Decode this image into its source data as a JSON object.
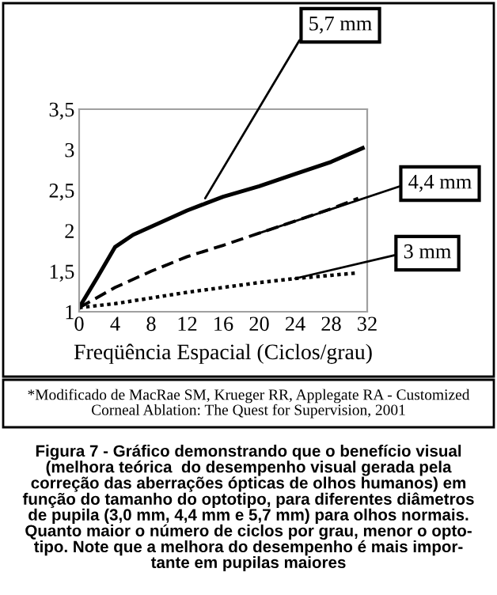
{
  "chart_data": {
    "type": "line",
    "xlabel": "Freqüência Espacial (Ciclos/grau)",
    "xlim": [
      0,
      32
    ],
    "xticks": [
      0,
      4,
      8,
      12,
      16,
      20,
      24,
      28,
      32
    ],
    "ylim": [
      1,
      3.5
    ],
    "yticks": [
      1,
      {
        "value": 1.5,
        "label": "1,5"
      },
      2,
      {
        "value": 2.5,
        "label": "2,5"
      },
      3,
      {
        "value": 3.5,
        "label": "3,5"
      }
    ],
    "grid": false,
    "legend": false,
    "marker": "none",
    "series": [
      {
        "color": "#000000",
        "line_style": "solid",
        "x": [
          0,
          2,
          4,
          6,
          8,
          12,
          16,
          20,
          24,
          28,
          31.5
        ],
        "values": [
          1.05,
          1.42,
          1.8,
          1.95,
          2.05,
          2.25,
          2.42,
          2.55,
          2.7,
          2.85,
          3.02
        ]
      },
      {
        "color": "#000000",
        "line_style": "dashed",
        "x": [
          0,
          4,
          8,
          12,
          16,
          20,
          24,
          28,
          31
        ],
        "values": [
          1.05,
          1.3,
          1.5,
          1.68,
          1.82,
          1.97,
          2.12,
          2.27,
          2.4
        ]
      },
      {
        "color": "#000000",
        "line_style": "dotted",
        "x": [
          0,
          4,
          8,
          12,
          16,
          20,
          24,
          28,
          31
        ],
        "values": [
          1.05,
          1.1,
          1.17,
          1.24,
          1.3,
          1.36,
          1.41,
          1.45,
          1.48
        ]
      }
    ],
    "annotations": [
      {
        "text": "5,7 mm",
        "x": 14,
        "y": 2.4
      },
      {
        "text": "4,4 mm",
        "x": 20,
        "y": 1.97
      },
      {
        "text": "3 mm",
        "x": 24,
        "y": 1.41
      },
      "*Modificado de MacRae SM, Krueger RR, Applegate RA - Customized\nCorneal Ablation: The Quest for Supervision, 2001",
      "Figura 7 - Gráfico demonstrando que o benefício visual\n(melhora teórica  do desempenho visual gerada pela\ncorreção das aberrações ópticas de olhos humanos) em\nfunção do tamanho do optotipo, para diferentes diâmetros\nde pupila (3,0 mm, 4,4 mm e 5,7 mm) para olhos normais.\nQuanto maior o número de ciclos por grau, menor o opto-\ntipo. Note que a melhora do desempenho é mais impor-\ntante em pupilas maiores"
    ]
  }
}
